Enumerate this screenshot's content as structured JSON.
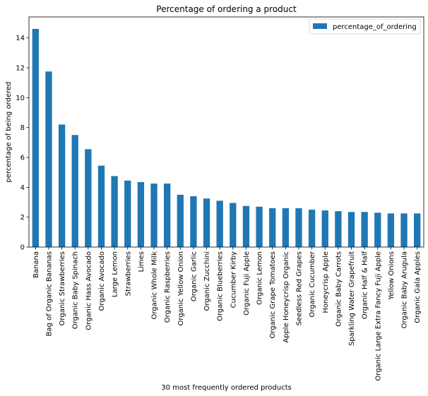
{
  "chart_data": {
    "type": "bar",
    "title": "Percentage of ordering a product",
    "xlabel": "30 most frequently ordered products",
    "ylabel": "percentage of being ordered",
    "ylim": [
      0,
      15.4
    ],
    "yticks": [
      0,
      2,
      4,
      6,
      8,
      10,
      12,
      14
    ],
    "grid": false,
    "legend_position": "top-right",
    "bar_color": "#1f77b4",
    "categories": [
      "Banana",
      "Bag of Organic Bananas",
      "Organic Strawberries",
      "Organic Baby Spinach",
      "Organic Hass Avocado",
      "Organic Avocado",
      "Large Lemon",
      "Strawberries",
      "Limes",
      "Organic Whole Milk",
      "Organic Raspberries",
      "Organic Yellow Onion",
      "Organic Garlic",
      "Organic Zucchini",
      "Organic Blueberries",
      "Cucumber Kirby",
      "Organic Fuji Apple",
      "Organic Lemon",
      "Organic Grape Tomatoes",
      "Apple Honeycrisp Organic",
      "Seedless Red Grapes",
      "Organic Cucumber",
      "Honeycrisp Apple",
      "Organic Baby Carrots",
      "Sparkling Water Grapefruit",
      "Organic Half & Half",
      "Organic Large Extra Fancy Fuji Apple",
      "Yellow Onions",
      "Organic Baby Arugula",
      "Organic Gala Apples"
    ],
    "series": [
      {
        "name": "percentage_of_ordering",
        "values": [
          14.6,
          11.75,
          8.2,
          7.5,
          6.55,
          5.45,
          4.75,
          4.45,
          4.35,
          4.25,
          4.25,
          3.5,
          3.4,
          3.25,
          3.1,
          2.95,
          2.75,
          2.7,
          2.6,
          2.6,
          2.6,
          2.5,
          2.45,
          2.4,
          2.35,
          2.35,
          2.3,
          2.25,
          2.25,
          2.25
        ]
      }
    ]
  }
}
